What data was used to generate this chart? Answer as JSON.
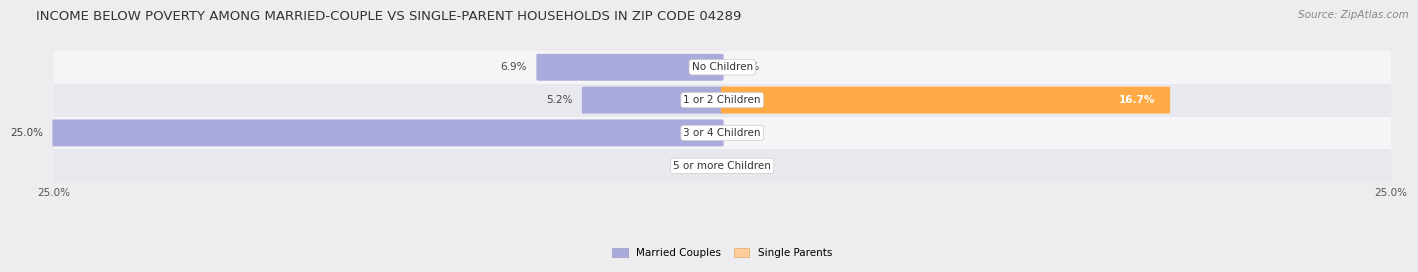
{
  "title": "INCOME BELOW POVERTY AMONG MARRIED-COUPLE VS SINGLE-PARENT HOUSEHOLDS IN ZIP CODE 04289",
  "source": "Source: ZipAtlas.com",
  "categories": [
    "No Children",
    "1 or 2 Children",
    "3 or 4 Children",
    "5 or more Children"
  ],
  "married_values": [
    6.9,
    5.2,
    25.0,
    0.0
  ],
  "single_values": [
    0.0,
    16.7,
    0.0,
    0.0
  ],
  "married_color": "#aaaadd",
  "single_color": "#ffaa44",
  "single_color_light": "#ffcc99",
  "bg_color": "#ededf0",
  "row_colors": [
    "#f5f5f7",
    "#e8e8ef"
  ],
  "axis_min": -25.0,
  "axis_max": 25.0,
  "title_fontsize": 9.5,
  "label_fontsize": 7.5,
  "tick_fontsize": 7.5,
  "source_fontsize": 7.5
}
